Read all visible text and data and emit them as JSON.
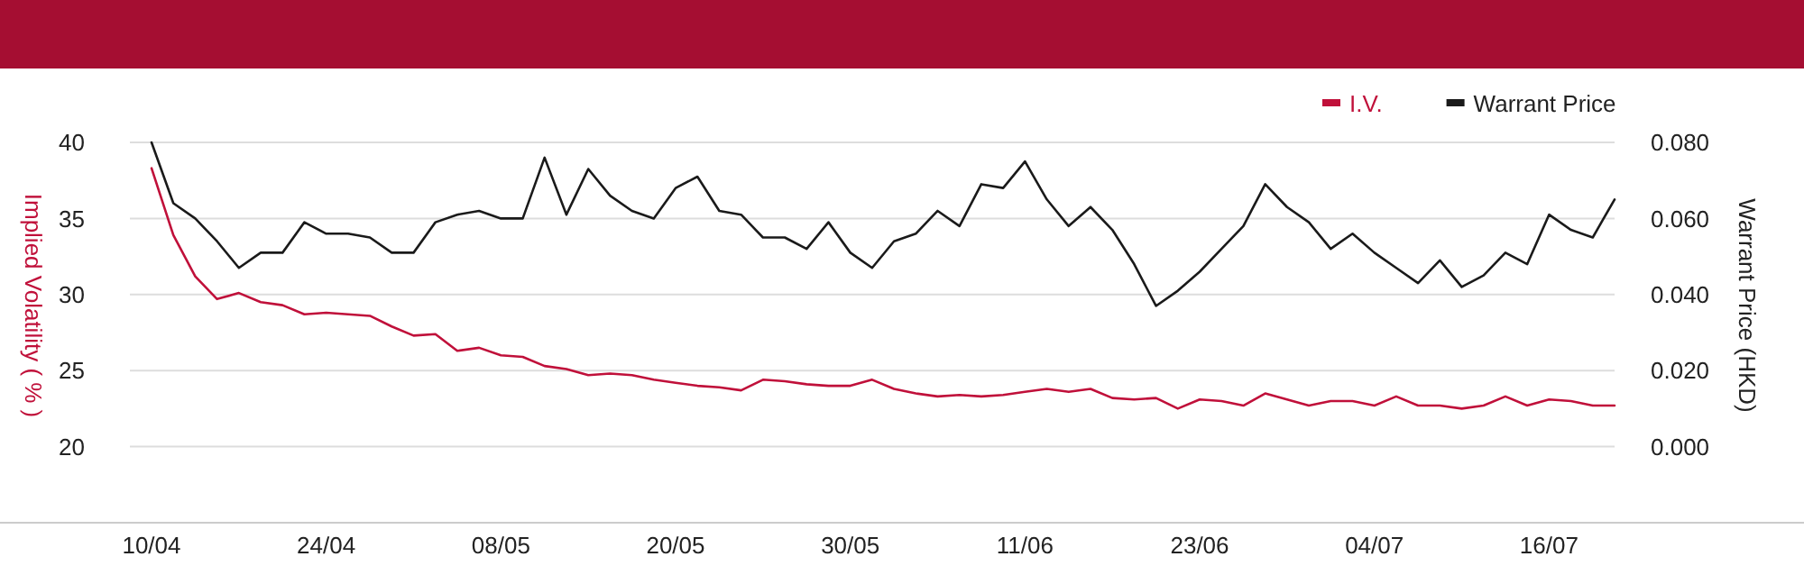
{
  "chart_data": {
    "type": "line",
    "ylabel": "Implied Volatility ( % )",
    "y2label": "Warrant Price (HKD)",
    "categories": [
      "10/04",
      null,
      null,
      null,
      null,
      null,
      null,
      null,
      "24/04",
      null,
      null,
      null,
      null,
      null,
      null,
      null,
      "08/05",
      null,
      null,
      null,
      null,
      null,
      null,
      null,
      "20/05",
      null,
      null,
      null,
      null,
      null,
      null,
      null,
      "30/05",
      null,
      null,
      null,
      null,
      null,
      null,
      null,
      "11/06",
      null,
      null,
      null,
      null,
      null,
      null,
      null,
      "23/06",
      null,
      null,
      null,
      null,
      null,
      null,
      null,
      "04/07",
      null,
      null,
      null,
      null,
      null,
      null,
      null,
      "16/07",
      null,
      null,
      null
    ],
    "series": [
      {
        "name": "I.V.",
        "color": "#c0103a",
        "axis": "y",
        "values": [
          38.3,
          33.9,
          31.2,
          29.7,
          30.1,
          29.5,
          29.3,
          28.7,
          28.8,
          28.7,
          28.6,
          27.9,
          27.3,
          27.4,
          26.3,
          26.5,
          26.0,
          25.9,
          25.3,
          25.1,
          24.7,
          24.8,
          24.7,
          24.4,
          24.2,
          24.0,
          23.9,
          23.7,
          24.4,
          24.3,
          24.1,
          24.0,
          24.0,
          24.4,
          23.8,
          23.5,
          23.3,
          23.4,
          23.3,
          23.4,
          23.6,
          23.8,
          23.6,
          23.8,
          23.2,
          23.1,
          23.2,
          22.5,
          23.1,
          23.0,
          22.7,
          23.5,
          23.1,
          22.7,
          23.0,
          23.0,
          22.7,
          23.3,
          22.7,
          22.7,
          22.5,
          22.7,
          23.3,
          22.7,
          23.1,
          23.0,
          22.7,
          22.7
        ]
      },
      {
        "name": "Warrant Price",
        "color": "#1a1a1a",
        "axis": "y2",
        "values": [
          0.08,
          0.064,
          0.06,
          0.054,
          0.047,
          0.051,
          0.051,
          0.059,
          0.056,
          0.056,
          0.055,
          0.051,
          0.051,
          0.059,
          0.061,
          0.062,
          0.06,
          0.06,
          0.076,
          0.061,
          0.073,
          0.066,
          0.062,
          0.06,
          0.068,
          0.071,
          0.062,
          0.061,
          0.055,
          0.055,
          0.052,
          0.059,
          0.051,
          0.047,
          0.054,
          0.056,
          0.062,
          0.058,
          0.069,
          0.068,
          0.075,
          0.065,
          0.058,
          0.063,
          0.057,
          0.048,
          0.037,
          0.041,
          0.046,
          0.052,
          0.058,
          0.069,
          0.063,
          0.059,
          0.052,
          0.056,
          0.051,
          0.047,
          0.043,
          0.049,
          0.042,
          0.045,
          0.051,
          0.048,
          0.061,
          0.057,
          0.055,
          0.065
        ]
      }
    ],
    "ylim": [
      15,
      40
    ],
    "yticks": [
      20,
      25,
      30,
      35,
      40
    ],
    "y2lim": [
      -0.02,
      0.08
    ],
    "y2ticks": [
      {
        "value": 0,
        "label": "0.000"
      },
      {
        "value": 0.02,
        "label": "0.020"
      },
      {
        "value": 0.04,
        "label": "0.040"
      },
      {
        "value": 0.06,
        "label": "0.060"
      },
      {
        "value": 0.08,
        "label": "0.080"
      }
    ],
    "grid": "y",
    "legend": "top right",
    "marker": "none",
    "line_style": "solid"
  }
}
